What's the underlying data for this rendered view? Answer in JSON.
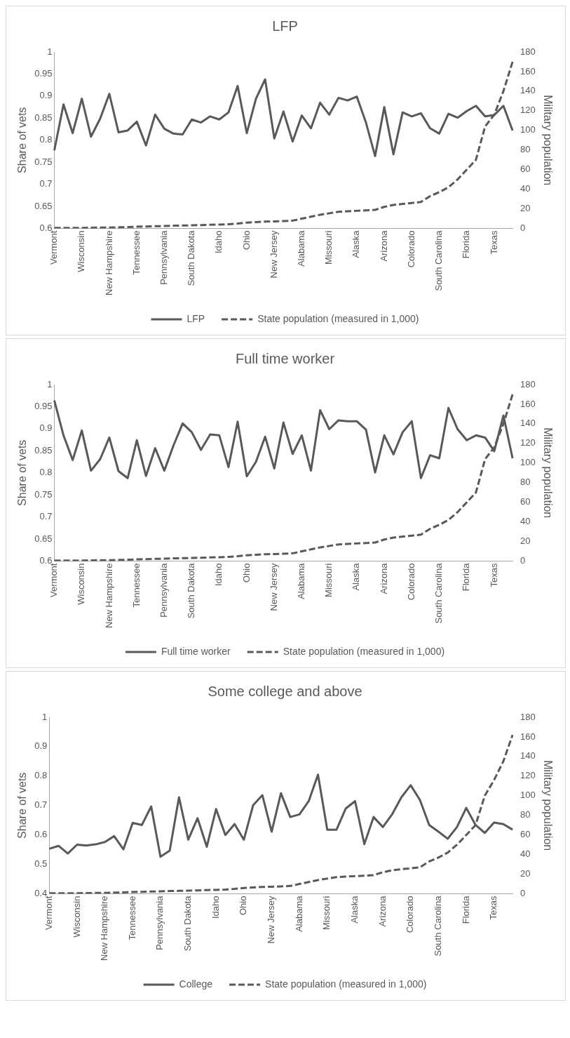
{
  "chart_data": [
    {
      "type": "line",
      "title": "LFP",
      "ylabel": "Share of vets",
      "y2label": "Military population",
      "legend": "bottom",
      "categories": [
        "Vermont",
        null,
        null,
        "Wisconsin",
        null,
        null,
        "New Hampshire",
        null,
        null,
        "Tennessee",
        null,
        null,
        "Pennsylvania",
        null,
        null,
        "South Dakota",
        null,
        null,
        "Idaho",
        null,
        null,
        "Ohio",
        null,
        null,
        "New Jersey",
        null,
        null,
        "Alabama",
        null,
        null,
        "Missouri",
        null,
        null,
        "Alaska",
        null,
        null,
        "Arizona",
        null,
        null,
        "Colorado",
        null,
        null,
        "South Carolina",
        null,
        null,
        "Florida",
        null,
        null,
        "Texas",
        null,
        null
      ],
      "series": [
        {
          "name": "LFP",
          "color": "#595959",
          "line_style": "solid",
          "values": [
            0.777,
            0.881,
            0.816,
            0.894,
            0.808,
            0.849,
            0.905,
            0.818,
            0.822,
            0.842,
            0.788,
            0.858,
            0.826,
            0.815,
            0.813,
            0.847,
            0.84,
            0.854,
            0.847,
            0.863,
            0.923,
            0.816,
            0.894,
            0.938,
            0.804,
            0.865,
            0.797,
            0.856,
            0.827,
            0.885,
            0.858,
            0.896,
            0.89,
            0.899,
            0.84,
            0.764,
            0.875,
            0.768,
            0.863,
            0.854,
            0.861,
            0.827,
            0.815,
            0.86,
            0.851,
            0.866,
            0.878,
            0.854,
            0.857,
            0.878,
            0.822
          ]
        },
        {
          "name": "State population (measured in 1,000)",
          "color": "#595959",
          "line_style": "dashed",
          "axis": "y2",
          "values": [
            0.5,
            0.5,
            0.5,
            0.6,
            0.7,
            0.9,
            1,
            1.2,
            1.4,
            1.8,
            2,
            2.3,
            2.5,
            2.8,
            3,
            3.2,
            3.5,
            3.8,
            4,
            4.3,
            5,
            6,
            6.5,
            7,
            7.2,
            7.5,
            8,
            10,
            12,
            14,
            15.5,
            17,
            17.5,
            18,
            18.5,
            19,
            22,
            24,
            25,
            26,
            27,
            33,
            37,
            42,
            50,
            60,
            70,
            104,
            116,
            140,
            170
          ]
        }
      ],
      "ylim": [
        0.6,
        1
      ],
      "yticks": [
        0.6,
        0.65,
        0.7,
        0.75,
        0.8,
        0.85,
        0.9,
        0.95,
        1
      ],
      "y2lim": [
        0,
        180
      ],
      "y2ticks": [
        0,
        20,
        40,
        60,
        80,
        100,
        120,
        140,
        160,
        180
      ]
    },
    {
      "type": "line",
      "title": "Full time worker",
      "ylabel": "Share of vets",
      "y2label": "Military population",
      "legend": "bottom",
      "categories": [
        "Vermont",
        null,
        null,
        "Wisconsin",
        null,
        null,
        "New Hampshire",
        null,
        null,
        "Tennessee",
        null,
        null,
        "Pennsylvania",
        null,
        null,
        "South Dakota",
        null,
        null,
        "Idaho",
        null,
        null,
        "Ohio",
        null,
        null,
        "New Jersey",
        null,
        null,
        "Alabama",
        null,
        null,
        "Missouri",
        null,
        null,
        "Alaska",
        null,
        null,
        "Arizona",
        null,
        null,
        "Colorado",
        null,
        null,
        "South Carolina",
        null,
        null,
        "Florida",
        null,
        null,
        "Texas",
        null,
        null
      ],
      "series": [
        {
          "name": "Full time worker",
          "color": "#595959",
          "line_style": "solid",
          "values": [
            0.964,
            0.885,
            0.829,
            0.896,
            0.805,
            0.831,
            0.88,
            0.804,
            0.788,
            0.874,
            0.793,
            0.856,
            0.805,
            0.862,
            0.912,
            0.892,
            0.852,
            0.887,
            0.885,
            0.813,
            0.916,
            0.792,
            0.825,
            0.882,
            0.81,
            0.914,
            0.843,
            0.885,
            0.805,
            0.942,
            0.899,
            0.919,
            0.917,
            0.917,
            0.898,
            0.801,
            0.885,
            0.842,
            0.892,
            0.917,
            0.788,
            0.84,
            0.833,
            0.947,
            0.899,
            0.874,
            0.885,
            0.88,
            0.849,
            0.93,
            0.833
          ]
        },
        {
          "name": "State population (measured in 1,000)",
          "color": "#595959",
          "line_style": "dashed",
          "axis": "y2",
          "values": [
            0.5,
            0.5,
            0.5,
            0.6,
            0.7,
            0.9,
            1,
            1.2,
            1.4,
            1.8,
            2,
            2.3,
            2.5,
            2.8,
            3,
            3.2,
            3.5,
            3.8,
            4,
            4.3,
            5,
            6,
            6.5,
            7,
            7.2,
            7.5,
            8,
            10,
            12,
            14,
            15.5,
            17,
            17.5,
            18,
            18.5,
            19,
            22,
            24,
            25,
            26,
            27,
            33,
            37,
            42,
            50,
            60,
            70,
            104,
            116,
            140,
            170
          ]
        }
      ],
      "ylim": [
        0.6,
        1
      ],
      "yticks": [
        0.6,
        0.65,
        0.7,
        0.75,
        0.8,
        0.85,
        0.9,
        0.95,
        1
      ],
      "y2lim": [
        0,
        180
      ],
      "y2ticks": [
        0,
        20,
        40,
        60,
        80,
        100,
        120,
        140,
        160,
        180
      ]
    },
    {
      "type": "line",
      "title": "Some college and above",
      "ylabel": "Share of vets",
      "y2label": "Military population",
      "legend": "bottom",
      "categories": [
        "Vermont",
        null,
        null,
        "Wisconsin",
        null,
        null,
        "New Hampshire",
        null,
        null,
        "Tennessee",
        null,
        null,
        "Pennsylvania",
        null,
        null,
        "South Dakota",
        null,
        null,
        "Idaho",
        null,
        null,
        "Ohio",
        null,
        null,
        "New Jersey",
        null,
        null,
        "Alabama",
        null,
        null,
        "Missouri",
        null,
        null,
        "Alaska",
        null,
        null,
        "Arizona",
        null,
        null,
        "Colorado",
        null,
        null,
        "South Carolina",
        null,
        null,
        "Florida",
        null,
        null,
        "Texas",
        null,
        null
      ],
      "series": [
        {
          "name": "College",
          "color": "#595959",
          "line_style": "solid",
          "values": [
            0.553,
            0.563,
            0.537,
            0.567,
            0.564,
            0.568,
            0.576,
            0.596,
            0.551,
            0.641,
            0.634,
            0.697,
            0.526,
            0.547,
            0.728,
            0.584,
            0.657,
            0.56,
            0.688,
            0.6,
            0.637,
            0.584,
            0.701,
            0.735,
            0.611,
            0.742,
            0.661,
            0.67,
            0.715,
            0.805,
            0.618,
            0.618,
            0.69,
            0.715,
            0.569,
            0.661,
            0.627,
            0.67,
            0.728,
            0.769,
            0.719,
            0.634,
            0.611,
            0.587,
            0.627,
            0.692,
            0.634,
            0.607,
            0.642,
            0.637,
            0.618
          ]
        },
        {
          "name": "State population (measured in 1,000)",
          "color": "#595959",
          "line_style": "dashed",
          "axis": "y2",
          "values": [
            0.5,
            0.5,
            0.5,
            0.6,
            0.7,
            0.9,
            1,
            1.2,
            1.4,
            1.8,
            2,
            2.3,
            2.5,
            2.8,
            3,
            3.2,
            3.5,
            3.8,
            4,
            4.3,
            5,
            6,
            6.5,
            7,
            7.2,
            7.5,
            8,
            10,
            12,
            14,
            15.5,
            17,
            17.5,
            18,
            18.5,
            19,
            22,
            24,
            25,
            26,
            27,
            33,
            37,
            42,
            50,
            60,
            70,
            100,
            116,
            135,
            162
          ]
        }
      ],
      "ylim": [
        0.4,
        1
      ],
      "yticks": [
        0.4,
        0.5,
        0.6,
        0.7,
        0.8,
        0.9,
        1
      ],
      "y2lim": [
        0,
        180
      ],
      "y2ticks": [
        0,
        20,
        40,
        60,
        80,
        100,
        120,
        140,
        160,
        180
      ]
    }
  ]
}
